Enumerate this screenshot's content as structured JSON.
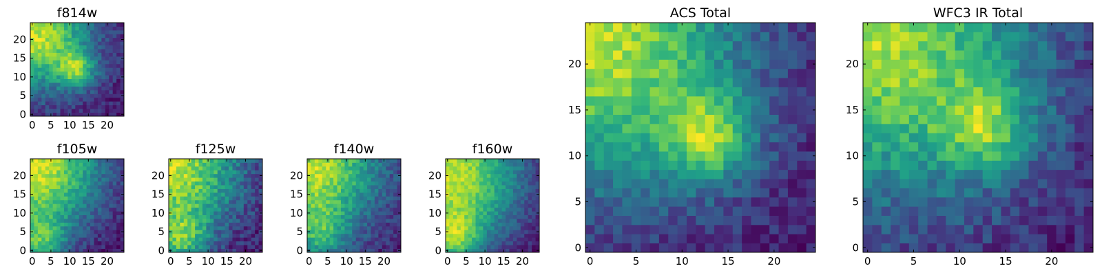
{
  "chart_data": [
    {
      "type": "heatmap",
      "key": "f814w",
      "title": "f814w",
      "grid_size": 25,
      "colormap": "viridis",
      "xticks": [
        "0",
        "5",
        "10",
        "15",
        "20"
      ],
      "yticks": [
        "0",
        "5",
        "10",
        "15",
        "20"
      ],
      "xlim": [
        0,
        25
      ],
      "ylim": [
        0,
        25
      ],
      "bright_regions": [
        {
          "x": 1,
          "y": 21,
          "r": 10,
          "strength": 1.0
        },
        {
          "x": 12,
          "y": 12,
          "r": 3.5,
          "strength": 0.6
        }
      ],
      "noise": 0.13,
      "seed": 11
    },
    {
      "type": "heatmap",
      "key": "f105w",
      "title": "f105w",
      "grid_size": 25,
      "colormap": "viridis",
      "xticks": [
        "0",
        "5",
        "10",
        "15",
        "20"
      ],
      "yticks": [
        "0",
        "5",
        "10",
        "15",
        "20"
      ],
      "xlim": [
        0,
        25
      ],
      "ylim": [
        0,
        25
      ],
      "bright_regions": [
        {
          "x": 1,
          "y": 22,
          "r": 13,
          "strength": 1.0
        },
        {
          "x": 2,
          "y": 2,
          "r": 5,
          "strength": 0.5
        }
      ],
      "noise": 0.11,
      "seed": 23
    },
    {
      "type": "heatmap",
      "key": "f125w",
      "title": "f125w",
      "grid_size": 25,
      "colormap": "viridis",
      "xticks": [
        "0",
        "5",
        "10",
        "15",
        "20"
      ],
      "yticks": [
        "0",
        "5",
        "10",
        "15",
        "20"
      ],
      "xlim": [
        0,
        25
      ],
      "ylim": [
        0,
        25
      ],
      "bright_regions": [
        {
          "x": 1,
          "y": 22,
          "r": 13,
          "strength": 0.9
        },
        {
          "x": 3,
          "y": 3,
          "r": 5,
          "strength": 0.5
        }
      ],
      "noise": 0.14,
      "seed": 37
    },
    {
      "type": "heatmap",
      "key": "f140w",
      "title": "f140w",
      "grid_size": 25,
      "colormap": "viridis",
      "xticks": [
        "0",
        "5",
        "10",
        "15",
        "20"
      ],
      "yticks": [
        "0",
        "5",
        "10",
        "15",
        "20"
      ],
      "xlim": [
        0,
        25
      ],
      "ylim": [
        0,
        25
      ],
      "bright_regions": [
        {
          "x": 1,
          "y": 22,
          "r": 13,
          "strength": 1.0
        },
        {
          "x": 3,
          "y": 4,
          "r": 5,
          "strength": 0.4
        }
      ],
      "noise": 0.13,
      "seed": 41
    },
    {
      "type": "heatmap",
      "key": "f160w",
      "title": "f160w",
      "grid_size": 25,
      "colormap": "viridis",
      "xticks": [
        "0",
        "5",
        "10",
        "15",
        "20"
      ],
      "yticks": [
        "0",
        "5",
        "10",
        "15",
        "20"
      ],
      "xlim": [
        0,
        25
      ],
      "ylim": [
        0,
        25
      ],
      "bright_regions": [
        {
          "x": 1,
          "y": 20,
          "r": 14,
          "strength": 1.0
        },
        {
          "x": 2,
          "y": 3,
          "r": 5,
          "strength": 0.5
        }
      ],
      "noise": 0.1,
      "seed": 53
    },
    {
      "type": "heatmap",
      "key": "acs_total",
      "title": "ACS Total",
      "grid_size": 25,
      "colormap": "viridis",
      "xticks": [
        "0",
        "5",
        "10",
        "15",
        "20"
      ],
      "yticks": [
        "0",
        "5",
        "10",
        "15",
        "20"
      ],
      "xlim": [
        0,
        25
      ],
      "ylim": [
        0,
        25
      ],
      "bright_regions": [
        {
          "x": 1,
          "y": 22,
          "r": 11,
          "strength": 1.0
        },
        {
          "x": 13,
          "y": 12,
          "r": 3.5,
          "strength": 0.65
        }
      ],
      "noise": 0.13,
      "seed": 67
    },
    {
      "type": "heatmap",
      "key": "wfc3_ir_total",
      "title": "WFC3 IR Total",
      "grid_size": 25,
      "colormap": "viridis",
      "xticks": [
        "0",
        "5",
        "10",
        "15",
        "20"
      ],
      "yticks": [
        "0",
        "5",
        "10",
        "15",
        "20"
      ],
      "xlim": [
        0,
        25
      ],
      "ylim": [
        0,
        25
      ],
      "bright_regions": [
        {
          "x": 1,
          "y": 22,
          "r": 12,
          "strength": 1.0
        },
        {
          "x": 13,
          "y": 13,
          "r": 3.5,
          "strength": 0.55
        }
      ],
      "noise": 0.15,
      "seed": 79
    }
  ]
}
